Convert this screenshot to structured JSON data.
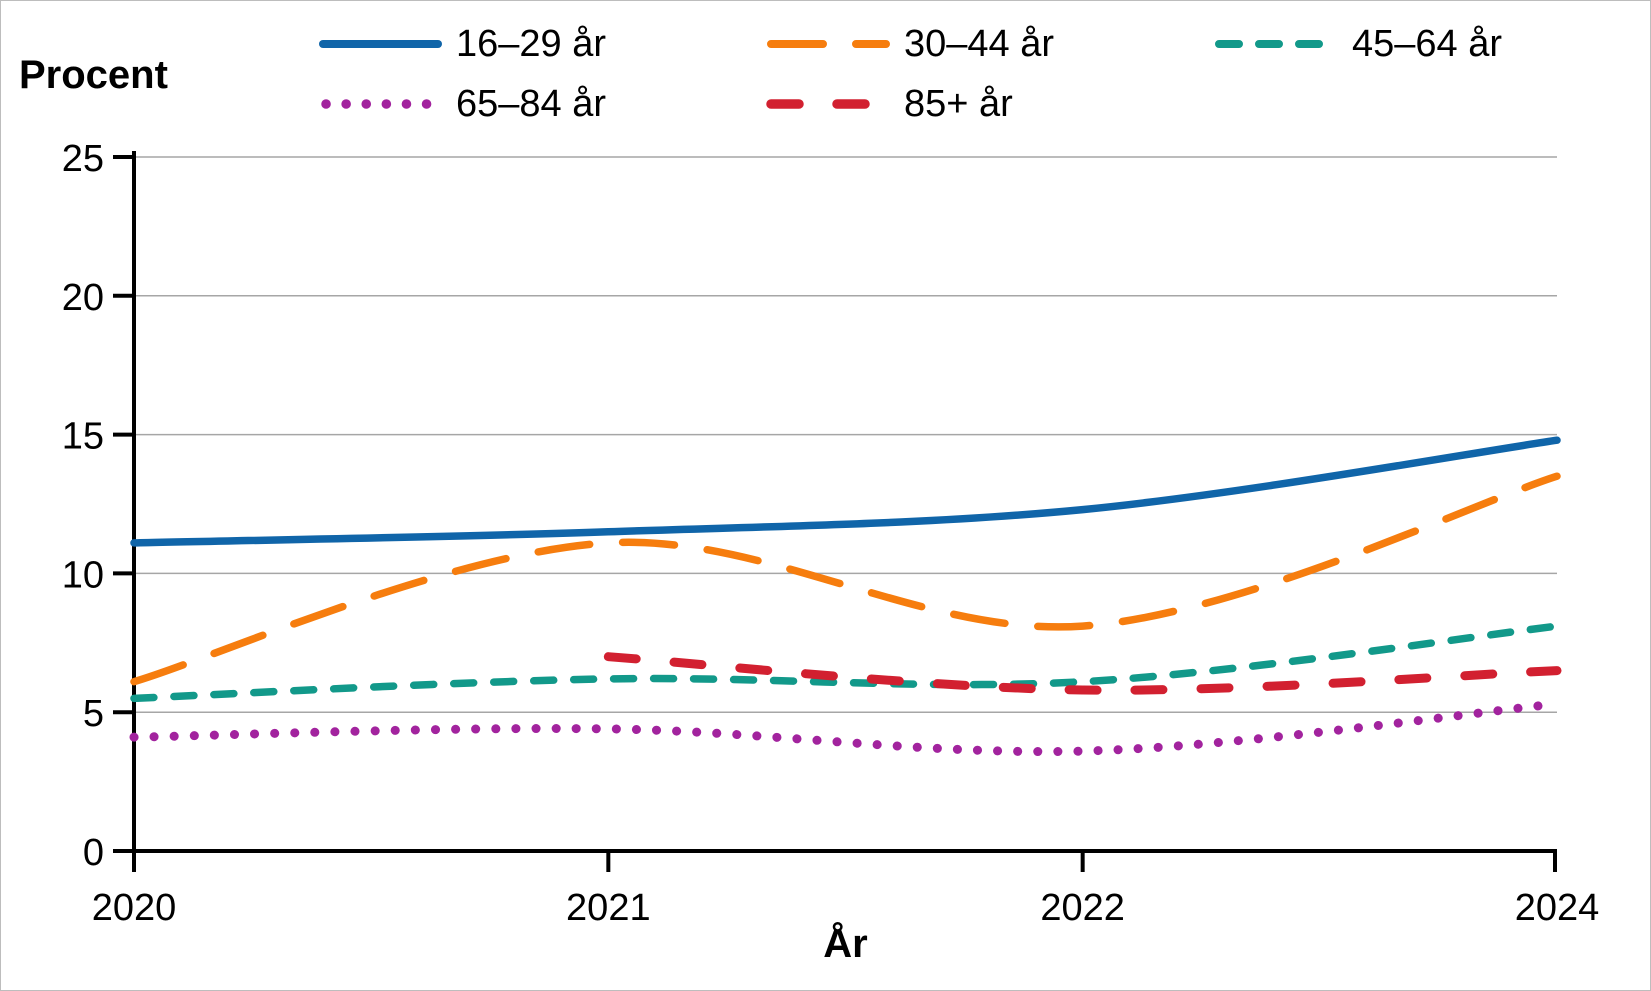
{
  "chart_data": {
    "type": "line",
    "title": "",
    "ylabel": "Procent",
    "xlabel": "År",
    "categories": [
      "2020",
      "2021",
      "2022",
      "2024"
    ],
    "y_ticks": [
      0,
      5,
      10,
      15,
      20,
      25
    ],
    "ylim": [
      0,
      25
    ],
    "grid": "horizontal-gray-lines",
    "legend_position": "top",
    "series": [
      {
        "name": "16–29 år",
        "color": "#1065A9",
        "style": "solid",
        "values": [
          11.1,
          11.5,
          12.3,
          14.8
        ]
      },
      {
        "name": "30–44 år",
        "color": "#F67D0E",
        "style": "long-dash",
        "values": [
          6.1,
          11.1,
          8.1,
          13.5
        ]
      },
      {
        "name": "45–64 år",
        "color": "#12998A",
        "style": "dash",
        "values": [
          5.5,
          6.2,
          6.1,
          8.1
        ]
      },
      {
        "name": "65–84 år",
        "color": "#A2239E",
        "style": "dot",
        "values": [
          4.1,
          4.4,
          3.6,
          5.3
        ]
      },
      {
        "name": "85+ år",
        "color": "#D22030",
        "style": "dash-wide",
        "values": [
          null,
          7.0,
          5.8,
          6.5
        ]
      }
    ],
    "axis_color": "#000000",
    "gridline_color": "#A6A6A6"
  }
}
